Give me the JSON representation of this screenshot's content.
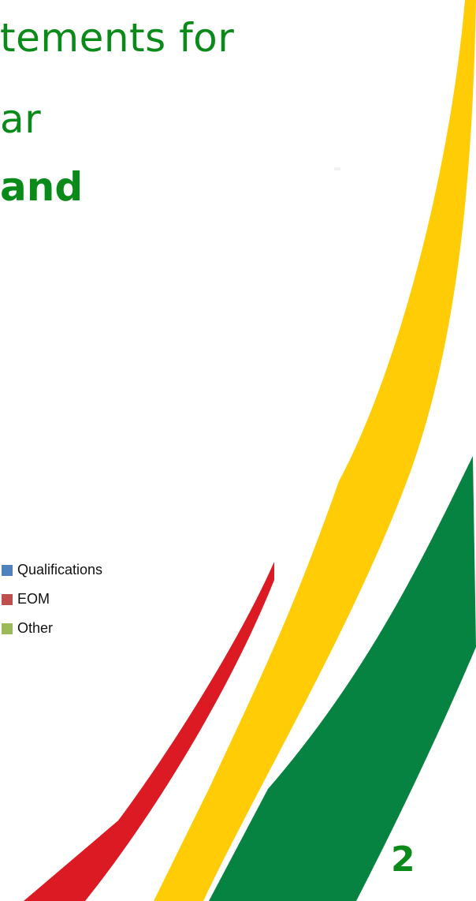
{
  "slide": {
    "title_line_1": "tements for",
    "title_line_2": "ar",
    "subtitle": "and",
    "page_number": "2"
  },
  "legend": {
    "items": [
      {
        "label": "Qualifications",
        "color": "#4f81bd"
      },
      {
        "label": "EOM",
        "color": "#c0504d"
      },
      {
        "label": "Other",
        "color": "#9bbb59"
      }
    ]
  },
  "colors": {
    "title": "#0a8a19",
    "swoosh_yellow": "#ffcc05",
    "swoosh_green": "#068341",
    "swoosh_red": "#dc1a23"
  }
}
